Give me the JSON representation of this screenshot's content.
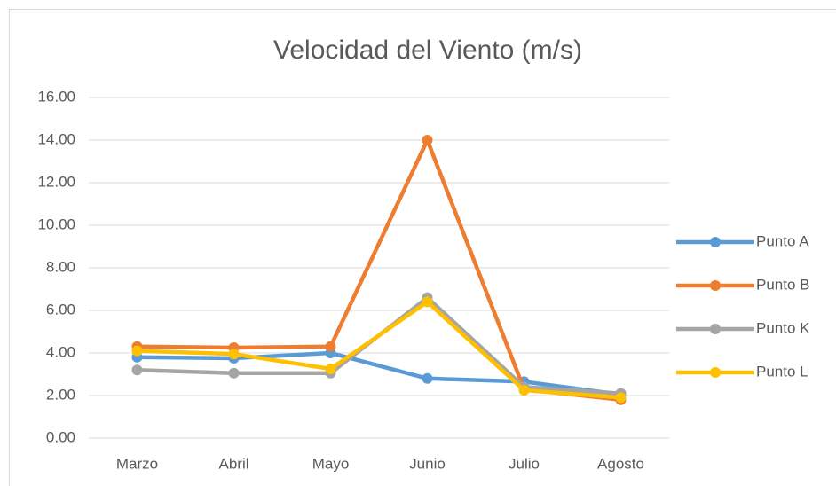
{
  "chart_data": {
    "type": "line",
    "title": "Velocidad del Viento (m/s)",
    "categories": [
      "Marzo",
      "Abril",
      "Mayo",
      "Junio",
      "Julio",
      "Agosto"
    ],
    "series": [
      {
        "name": "Punto A",
        "color": "#5b9bd5",
        "values": [
          3.8,
          3.75,
          4.0,
          2.8,
          2.65,
          2.05
        ]
      },
      {
        "name": "Punto B",
        "color": "#ed7d31",
        "values": [
          4.3,
          4.25,
          4.3,
          14.0,
          2.3,
          1.8
        ]
      },
      {
        "name": "Punto K",
        "color": "#a5a5a5",
        "values": [
          3.2,
          3.05,
          3.05,
          6.6,
          2.4,
          2.1
        ]
      },
      {
        "name": "Punto L",
        "color": "#ffc000",
        "values": [
          4.1,
          3.95,
          3.25,
          6.4,
          2.25,
          1.9
        ]
      }
    ],
    "ylim": [
      0,
      16
    ],
    "yticks": [
      {
        "value": 0,
        "label": "0.00"
      },
      {
        "value": 2,
        "label": "2.00"
      },
      {
        "value": 4,
        "label": "4.00"
      },
      {
        "value": 6,
        "label": "6.00"
      },
      {
        "value": 8,
        "label": "8.00"
      },
      {
        "value": 10,
        "label": "10.00"
      },
      {
        "value": 12,
        "label": "12.00"
      },
      {
        "value": 14,
        "label": "14.00"
      },
      {
        "value": 16,
        "label": "16.00"
      }
    ],
    "grid": true,
    "legend": "right"
  }
}
